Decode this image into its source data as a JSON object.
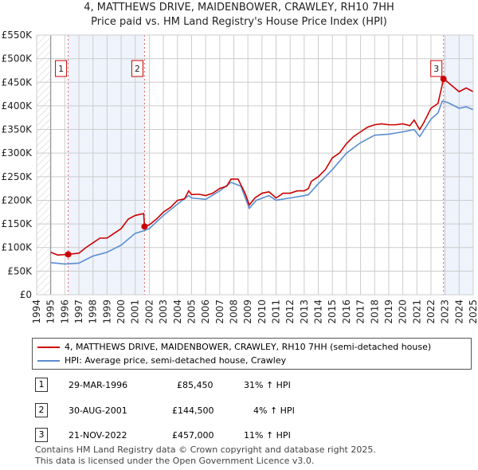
{
  "title_line1": "4, MATTHEWS DRIVE, MAIDENBOWER, CRAWLEY, RH10 7HH",
  "title_line2": "Price paid vs. HM Land Registry's House Price Index (HPI)",
  "colors": {
    "red": "#cc0000",
    "blue": "#5b8dd1",
    "shade": "#eef3fc"
  },
  "chart_data": {
    "type": "line",
    "title": "Price paid vs. HM Land Registry's House Price Index (HPI)",
    "xlim": [
      1994,
      2025
    ],
    "ylim": [
      0,
      550000
    ],
    "x_ticks": [
      "1994",
      "1995",
      "1996",
      "1997",
      "1998",
      "1999",
      "2000",
      "2001",
      "2002",
      "2003",
      "2004",
      "2005",
      "2006",
      "2007",
      "2008",
      "2009",
      "2010",
      "2011",
      "2012",
      "2013",
      "2014",
      "2015",
      "2016",
      "2017",
      "2018",
      "2019",
      "2020",
      "2021",
      "2022",
      "2023",
      "2024",
      "2025"
    ],
    "y_ticks": [
      "£0",
      "£50K",
      "£100K",
      "£150K",
      "£200K",
      "£250K",
      "£300K",
      "£350K",
      "£400K",
      "£450K",
      "£500K",
      "£550K"
    ],
    "series": [
      {
        "name": "4, MATTHEWS DRIVE, MAIDENBOWER, CRAWLEY, RH10 7HH (semi-detached house)",
        "color": "#cc0000",
        "x": [
          1995,
          1995.5,
          1996.24,
          1997,
          1997.5,
          1998,
          1998.5,
          1999,
          1999.5,
          2000,
          2000.5,
          2001,
          2001.6,
          2001.66,
          2002,
          2002.5,
          2003,
          2003.5,
          2004,
          2004.5,
          2004.8,
          2005,
          2005.5,
          2006,
          2006.5,
          2007,
          2007.5,
          2007.8,
          2008.3,
          2008.8,
          2009.1,
          2009.5,
          2010,
          2010.5,
          2011,
          2011.5,
          2012,
          2012.5,
          2013,
          2013.3,
          2013.5,
          2014,
          2014.5,
          2015,
          2015.5,
          2016,
          2016.5,
          2017,
          2017.5,
          2018,
          2018.5,
          2019,
          2019.5,
          2020,
          2020.5,
          2020.8,
          2021.2,
          2021.5,
          2022,
          2022.5,
          2022.89,
          2023.2,
          2023.6,
          2024,
          2024.5,
          2025
        ],
        "y": [
          90000,
          84000,
          85450,
          88000,
          100000,
          110000,
          120000,
          120000,
          130000,
          140000,
          160000,
          168000,
          172000,
          144500,
          148000,
          160000,
          175000,
          185000,
          200000,
          203000,
          220000,
          212000,
          213000,
          210000,
          215000,
          225000,
          230000,
          245000,
          245000,
          215000,
          190000,
          205000,
          215000,
          218000,
          205000,
          215000,
          215000,
          220000,
          220000,
          225000,
          240000,
          250000,
          265000,
          290000,
          300000,
          320000,
          335000,
          345000,
          355000,
          360000,
          362000,
          360000,
          360000,
          362000,
          358000,
          370000,
          350000,
          365000,
          395000,
          405000,
          457000,
          450000,
          440000,
          430000,
          438000,
          430000
        ]
      },
      {
        "name": "HPI: Average price, semi-detached house, Crawley",
        "color": "#5b8dd1",
        "x": [
          1995,
          1996,
          1997,
          1998,
          1999,
          2000,
          2001,
          2001.66,
          2002,
          2003,
          2004,
          2004.8,
          2005,
          2006,
          2007,
          2007.8,
          2008.5,
          2009.1,
          2009.6,
          2010.5,
          2011,
          2012,
          2013,
          2013.3,
          2014,
          2015,
          2016,
          2017,
          2018,
          2019,
          2020,
          2020.8,
          2021.2,
          2022,
          2022.5,
          2022.8,
          2023.2,
          2024,
          2024.5,
          2025
        ],
        "y": [
          68000,
          65000,
          67000,
          82000,
          90000,
          105000,
          130000,
          136000,
          140000,
          168000,
          192000,
          210000,
          205000,
          202000,
          220000,
          238000,
          230000,
          183000,
          200000,
          210000,
          200000,
          205000,
          210000,
          212000,
          235000,
          265000,
          300000,
          322000,
          338000,
          340000,
          345000,
          350000,
          335000,
          372000,
          385000,
          410000,
          407000,
          395000,
          398000,
          392000
        ]
      }
    ],
    "sales": [
      {
        "label": "1",
        "x": 1996.24,
        "y": 85450
      },
      {
        "label": "2",
        "x": 2001.66,
        "y": 144500
      },
      {
        "label": "3",
        "x": 2022.89,
        "y": 457000
      }
    ]
  },
  "legend": {
    "red": "4, MATTHEWS DRIVE, MAIDENBOWER, CRAWLEY, RH10 7HH (semi-detached house)",
    "blue": "HPI: Average price, semi-detached house, Crawley"
  },
  "transactions": [
    {
      "num": "1",
      "date": "29-MAR-1996",
      "price": "£85,450",
      "hpi": "31% ↑ HPI"
    },
    {
      "num": "2",
      "date": "30-AUG-2001",
      "price": "£144,500",
      "hpi": "4% ↑ HPI"
    },
    {
      "num": "3",
      "date": "21-NOV-2022",
      "price": "£457,000",
      "hpi": "11% ↑ HPI"
    }
  ],
  "footer": {
    "line1": "Contains HM Land Registry data © Crown copyright and database right 2025.",
    "line2": "This data is licensed under the Open Government Licence v3.0."
  }
}
